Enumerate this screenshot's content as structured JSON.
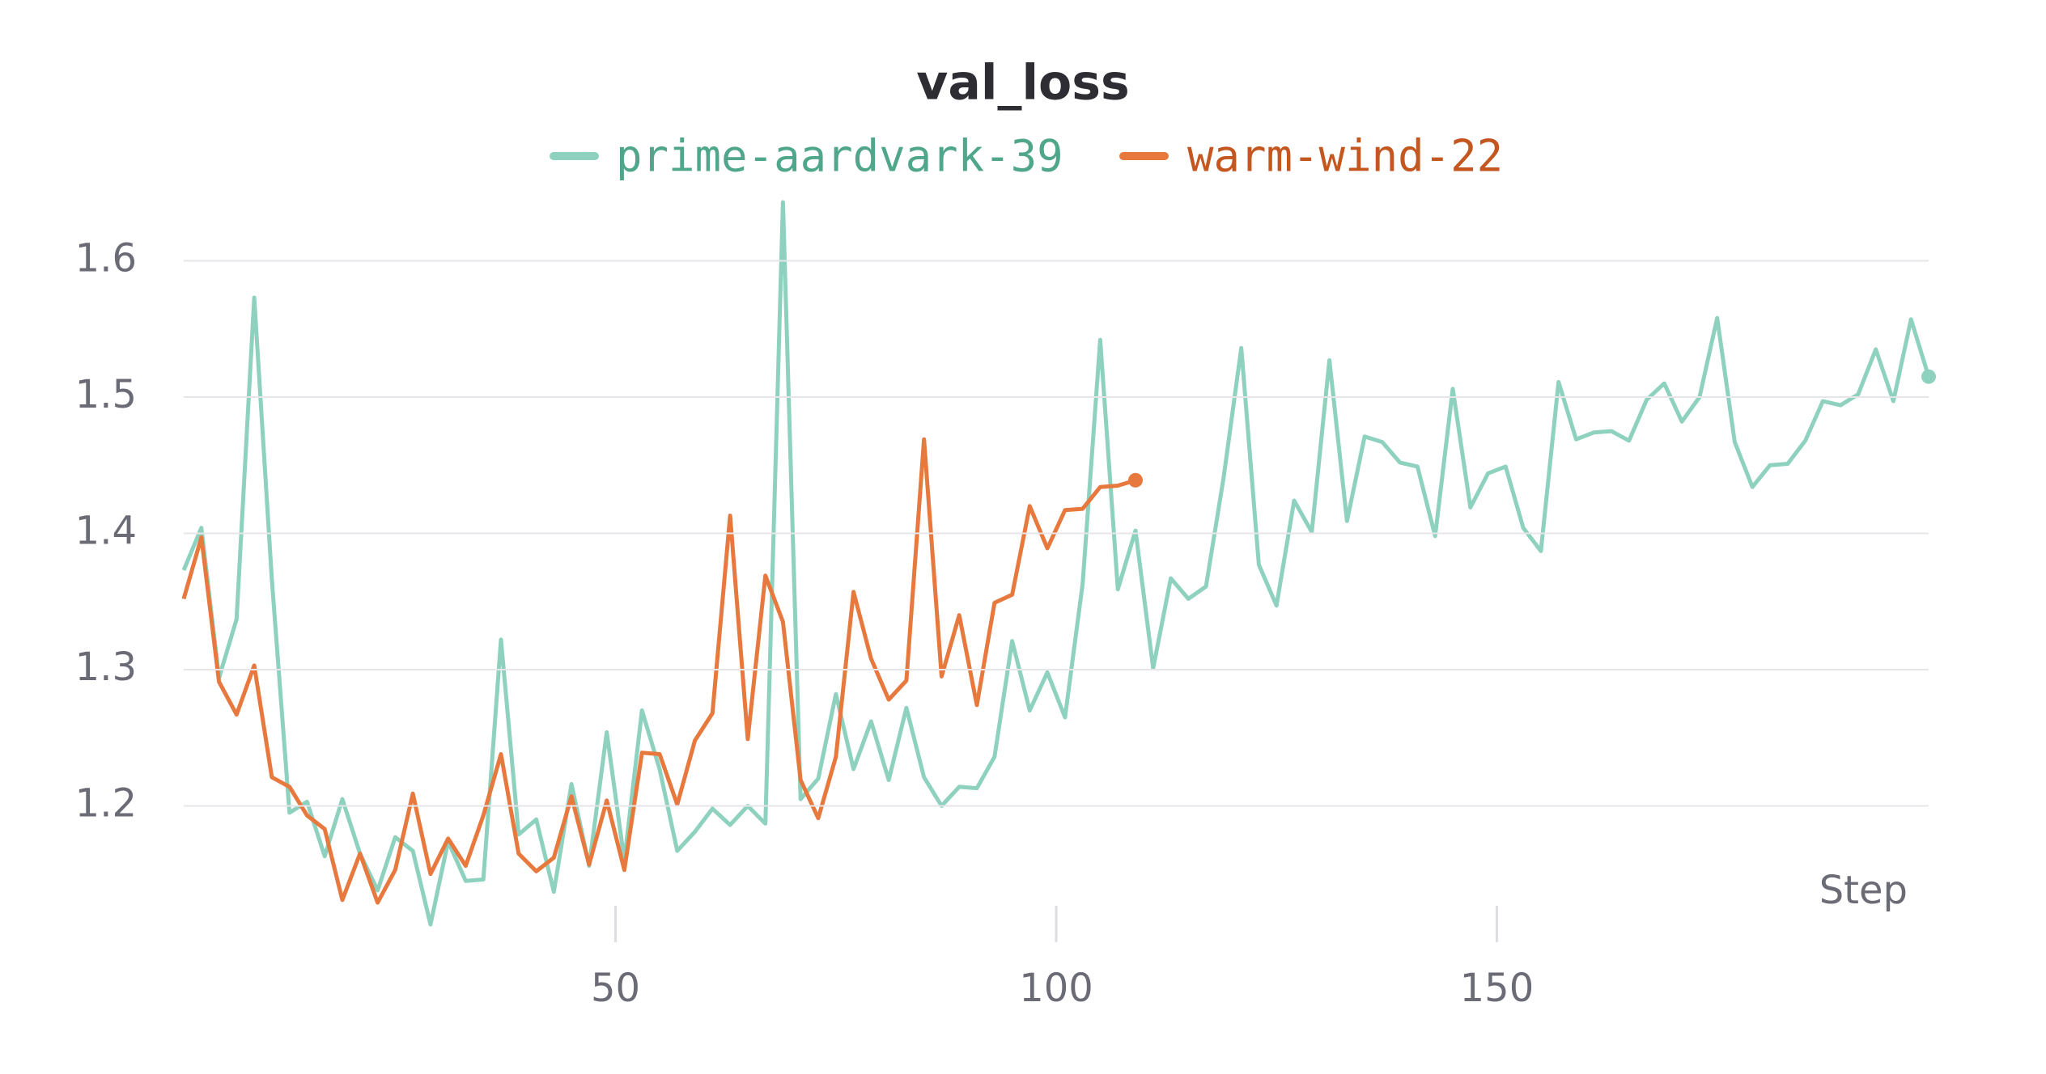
{
  "chart_data": {
    "type": "line",
    "title": "val_loss",
    "x_label": "Step",
    "xlim": [
      1,
      199
    ],
    "xticks": [
      50,
      100,
      150
    ],
    "ylim": [
      1.1,
      1.643
    ],
    "yticks": [
      1.2,
      1.3,
      1.4,
      1.5,
      1.6
    ],
    "grid": true,
    "series": [
      {
        "name": "prime-aardvark-39",
        "color": "#8ed1be",
        "x": [
          1,
          3,
          5,
          7,
          9,
          11,
          13,
          15,
          17,
          19,
          21,
          23,
          25,
          27,
          29,
          31,
          33,
          35,
          37,
          39,
          41,
          43,
          45,
          47,
          49,
          51,
          53,
          55,
          57,
          59,
          61,
          63,
          65,
          67,
          69,
          71,
          73,
          75,
          77,
          79,
          81,
          83,
          85,
          87,
          89,
          91,
          93,
          95,
          97,
          99,
          101,
          103,
          105,
          107,
          109,
          111,
          113,
          115,
          117,
          119,
          121,
          123,
          125,
          127,
          129,
          131,
          133,
          135,
          137,
          139,
          141,
          143,
          145,
          147,
          149,
          151,
          153,
          155,
          157,
          159,
          161,
          163,
          165,
          167,
          169,
          171,
          173,
          175,
          177,
          179,
          181,
          183,
          185,
          187,
          189,
          191,
          193,
          195,
          197,
          199
        ],
        "values": [
          1.373,
          1.404,
          1.294,
          1.337,
          1.573,
          1.366,
          1.195,
          1.203,
          1.163,
          1.205,
          1.165,
          1.138,
          1.177,
          1.167,
          1.113,
          1.174,
          1.145,
          1.146,
          1.322,
          1.179,
          1.19,
          1.137,
          1.216,
          1.156,
          1.254,
          1.16,
          1.27,
          1.227,
          1.167,
          1.181,
          1.198,
          1.186,
          1.2,
          1.187,
          1.643,
          1.205,
          1.22,
          1.282,
          1.227,
          1.262,
          1.219,
          1.272,
          1.221,
          1.2,
          1.214,
          1.213,
          1.236,
          1.321,
          1.27,
          1.298,
          1.265,
          1.363,
          1.542,
          1.359,
          1.402,
          1.301,
          1.367,
          1.352,
          1.361,
          1.441,
          1.536,
          1.377,
          1.347,
          1.424,
          1.401,
          1.527,
          1.409,
          1.471,
          1.467,
          1.452,
          1.449,
          1.398,
          1.506,
          1.419,
          1.444,
          1.449,
          1.404,
          1.387,
          1.511,
          1.469,
          1.474,
          1.475,
          1.468,
          1.498,
          1.51,
          1.482,
          1.5,
          1.558,
          1.467,
          1.434,
          1.45,
          1.451,
          1.468,
          1.497,
          1.494,
          1.502,
          1.535,
          1.497,
          1.557,
          1.515
        ]
      },
      {
        "name": "warm-wind-22",
        "color": "#e8793e",
        "x": [
          1,
          3,
          5,
          7,
          9,
          11,
          13,
          15,
          17,
          19,
          21,
          23,
          25,
          27,
          29,
          31,
          33,
          35,
          37,
          39,
          41,
          43,
          45,
          47,
          49,
          51,
          53,
          55,
          57,
          59,
          61,
          63,
          65,
          67,
          69,
          71,
          73,
          75,
          77,
          79,
          81,
          83,
          85,
          87,
          89,
          91,
          93,
          95,
          97,
          99,
          101,
          103,
          105,
          107,
          109
        ],
        "values": [
          1.352,
          1.397,
          1.291,
          1.267,
          1.303,
          1.221,
          1.214,
          1.193,
          1.183,
          1.131,
          1.165,
          1.129,
          1.153,
          1.209,
          1.15,
          1.176,
          1.156,
          1.193,
          1.238,
          1.165,
          1.152,
          1.162,
          1.207,
          1.157,
          1.204,
          1.153,
          1.239,
          1.238,
          1.201,
          1.248,
          1.268,
          1.413,
          1.249,
          1.369,
          1.335,
          1.219,
          1.191,
          1.236,
          1.357,
          1.308,
          1.278,
          1.292,
          1.469,
          1.295,
          1.34,
          1.274,
          1.349,
          1.355,
          1.42,
          1.389,
          1.417,
          1.418,
          1.434,
          1.435,
          1.439
        ]
      }
    ]
  }
}
